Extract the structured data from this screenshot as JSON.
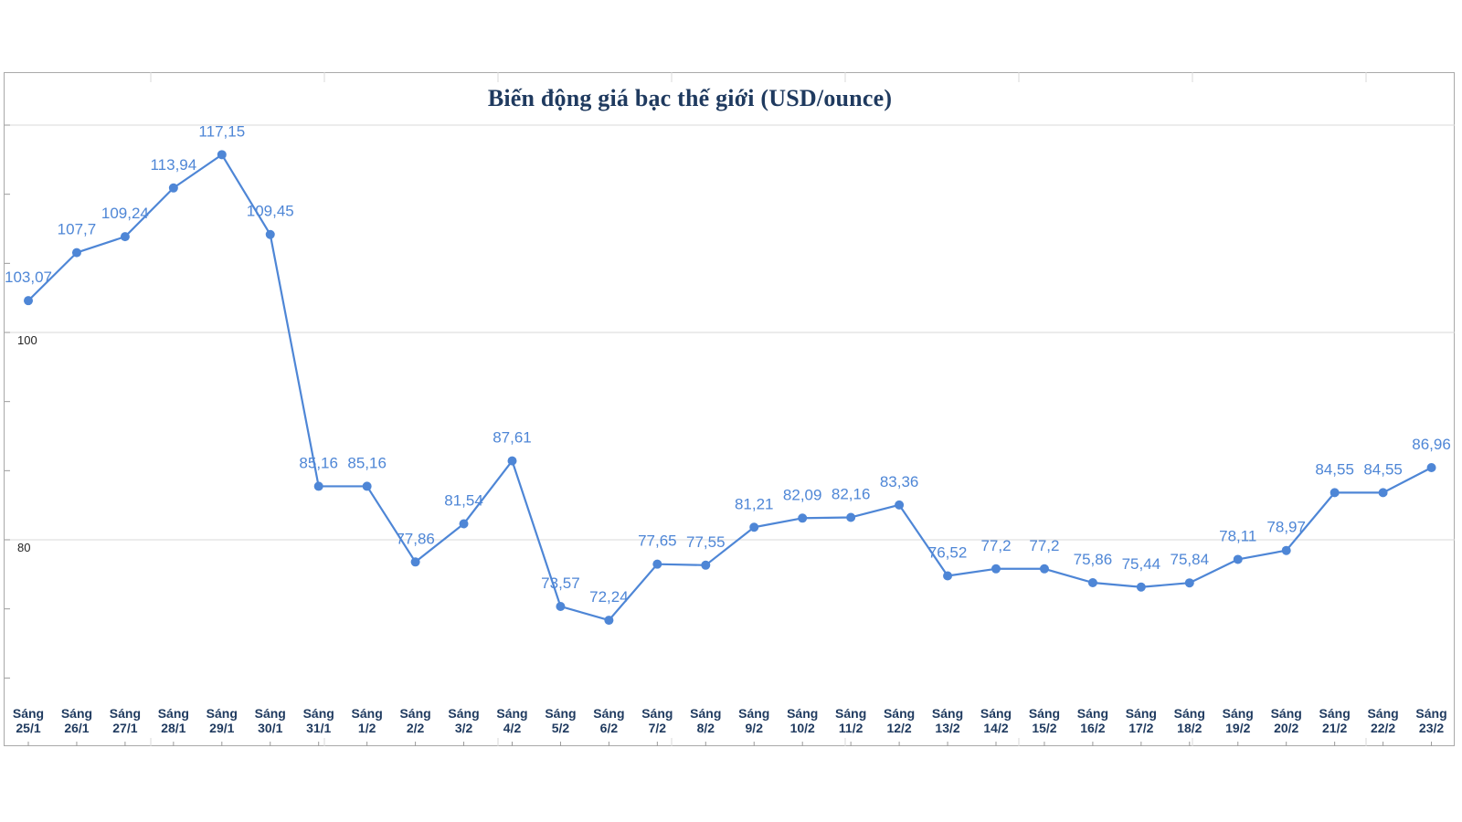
{
  "chart_data": {
    "type": "line",
    "title": "Biến động giá bạc thế giới (USD/ounce)",
    "categories": [
      [
        "Sáng",
        "25/1"
      ],
      [
        "Sáng",
        "26/1"
      ],
      [
        "Sáng",
        "27/1"
      ],
      [
        "Sáng",
        "28/1"
      ],
      [
        "Sáng",
        "29/1"
      ],
      [
        "Sáng",
        "30/1"
      ],
      [
        "Sáng",
        "31/1"
      ],
      [
        "Sáng",
        "1/2"
      ],
      [
        "Sáng",
        "2/2"
      ],
      [
        "Sáng",
        "3/2"
      ],
      [
        "Sáng",
        "4/2"
      ],
      [
        "Sáng",
        "5/2"
      ],
      [
        "Sáng",
        "6/2"
      ],
      [
        "Sáng",
        "7/2"
      ],
      [
        "Sáng",
        "8/2"
      ],
      [
        "Sáng",
        "9/2"
      ],
      [
        "Sáng",
        "10/2"
      ],
      [
        "Sáng",
        "11/2"
      ],
      [
        "Sáng",
        "12/2"
      ],
      [
        "Sáng",
        "13/2"
      ],
      [
        "Sáng",
        "14/2"
      ],
      [
        "Sáng",
        "15/2"
      ],
      [
        "Sáng",
        "16/2"
      ],
      [
        "Sáng",
        "17/2"
      ],
      [
        "Sáng",
        "18/2"
      ],
      [
        "Sáng",
        "19/2"
      ],
      [
        "Sáng",
        "20/2"
      ],
      [
        "Sáng",
        "21/2"
      ],
      [
        "Sáng",
        "22/2"
      ],
      [
        "Sáng",
        "23/2"
      ]
    ],
    "values": [
      103.07,
      107.7,
      109.24,
      113.94,
      117.15,
      109.45,
      85.16,
      85.16,
      77.86,
      81.54,
      87.61,
      73.57,
      72.24,
      77.65,
      77.55,
      81.21,
      82.09,
      82.16,
      83.36,
      76.52,
      77.2,
      77.2,
      75.86,
      75.44,
      75.84,
      78.11,
      78.97,
      84.55,
      84.55,
      86.96
    ],
    "value_labels": [
      "103,07",
      "107,7",
      "109,24",
      "113,94",
      "117,15",
      "109,45",
      "85,16",
      "85,16",
      "77,86",
      "81,54",
      "87,61",
      "73,57",
      "72,24",
      "77,65",
      "77,55",
      "81,21",
      "82,09",
      "82,16",
      "83,36",
      "76,52",
      "77,2",
      "77,2",
      "75,86",
      "75,44",
      "75,84",
      "78,11",
      "78,97",
      "84,55",
      "84,55",
      "86,96"
    ],
    "y_tick_labels": [
      {
        "value": 100,
        "label": "100"
      },
      {
        "value": 80,
        "label": "80"
      }
    ],
    "ylim": [
      64,
      120
    ],
    "grid": true,
    "colors": {
      "line": "#4e86d6",
      "title": "#1f3a5f",
      "x_labels": "#1f3a5f",
      "grid": "#d9d9d9"
    }
  }
}
